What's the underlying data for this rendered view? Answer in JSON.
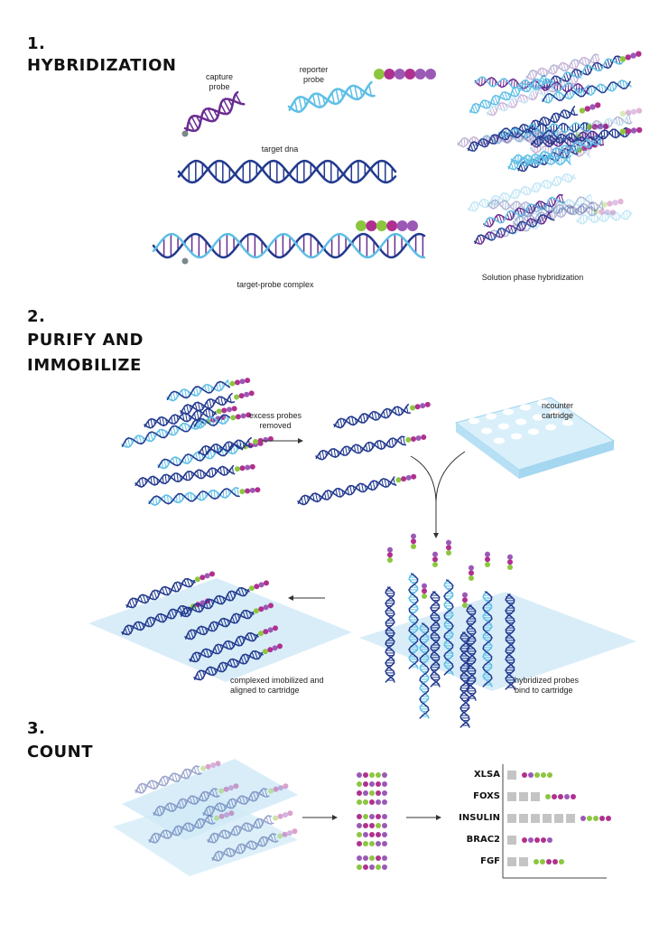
{
  "colors": {
    "navy": "#233a8f",
    "purple": "#6a2c91",
    "sky": "#5fbfe6",
    "magenta": "#b0308f",
    "green": "#8cc63f",
    "violet": "#9b59b6",
    "pad": "#cfe9f7",
    "gray": "#c4c4c4",
    "dot": "#7a8a8a"
  },
  "sections": [
    {
      "number": "1.",
      "title": "HYBRIDIZATION"
    },
    {
      "number": "2.",
      "title": "PURIFY AND",
      "title2": "IMMOBILIZE"
    },
    {
      "number": "3.",
      "title": "COUNT"
    }
  ],
  "labels": {
    "capture": "capture\nprobe",
    "reporter": "reporter\nprobe",
    "target": "target dna",
    "complex": "target-probe complex",
    "solution": "Solution phase hybridization",
    "excess": "excess probes\nremoved",
    "ncounter": "ncounter\ncartridge",
    "immobilized": "complexed imobilized and\naligned to cartridge",
    "hybridized": "hybridized probes\nbind to cartridge"
  },
  "genes": [
    {
      "name": "XLSA",
      "bars": 1,
      "barcode": [
        "magenta",
        "violet",
        "green",
        "green",
        "green"
      ]
    },
    {
      "name": "FOXS",
      "bars": 3,
      "barcode": [
        "green",
        "magenta",
        "magenta",
        "violet",
        "magenta"
      ]
    },
    {
      "name": "INSULIN",
      "bars": 6,
      "barcode": [
        "violet",
        "green",
        "green",
        "magenta",
        "magenta"
      ]
    },
    {
      "name": "BRAC2",
      "bars": 1,
      "barcode": [
        "magenta",
        "violet",
        "magenta",
        "magenta",
        "violet"
      ]
    },
    {
      "name": "FGF",
      "bars": 2,
      "barcode": [
        "green",
        "green",
        "magenta",
        "magenta",
        "green"
      ]
    }
  ]
}
